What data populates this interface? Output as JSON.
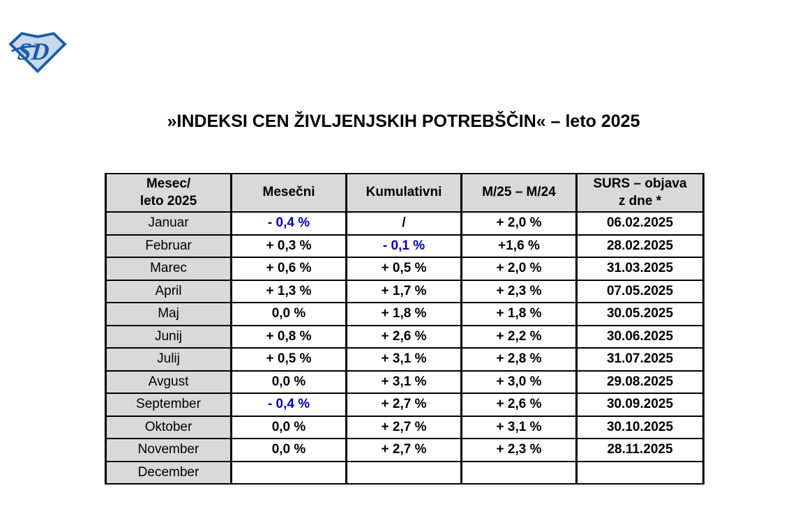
{
  "logo": {
    "letters": "SD",
    "outline_color": "#1A5CA8",
    "fill_color": "#C9D9EC"
  },
  "title": "»INDEKSI CEN ŽIVLJENJSKIH POTREBŠČIN« – leto 2025",
  "colors": {
    "negative_value": "#0000C0",
    "header_bg": "#D9D9D9",
    "border": "#000000"
  },
  "table": {
    "columns": [
      {
        "lines": [
          "Mesec/",
          "leto 2025"
        ]
      },
      {
        "lines": [
          "Mesečni"
        ]
      },
      {
        "lines": [
          "Kumulativni"
        ]
      },
      {
        "lines": [
          "M/25 – M/24"
        ]
      },
      {
        "lines": [
          "SURS – objava",
          "z dne *"
        ]
      }
    ],
    "rows": [
      {
        "month": "Januar",
        "cells": [
          {
            "text": "- 0,4 %",
            "blue": true
          },
          {
            "text": "/"
          },
          {
            "text": "+ 2,0 %"
          },
          {
            "text": "06.02.2025"
          }
        ]
      },
      {
        "month": "Februar",
        "cells": [
          {
            "text": "+ 0,3 %"
          },
          {
            "text": "- 0,1 %",
            "blue": true
          },
          {
            "text": "+1,6 %"
          },
          {
            "text": "28.02.2025"
          }
        ]
      },
      {
        "month": "Marec",
        "cells": [
          {
            "text": "+ 0,6 %"
          },
          {
            "text": "+ 0,5 %"
          },
          {
            "text": "+ 2,0 %"
          },
          {
            "text": "31.03.2025"
          }
        ]
      },
      {
        "month": "April",
        "cells": [
          {
            "text": "+ 1,3 %"
          },
          {
            "text": "+ 1,7 %"
          },
          {
            "text": "+ 2,3 %"
          },
          {
            "text": "07.05.2025"
          }
        ]
      },
      {
        "month": "Maj",
        "cells": [
          {
            "text": "0,0 %"
          },
          {
            "text": "+ 1,8 %"
          },
          {
            "text": "+ 1,8 %"
          },
          {
            "text": "30.05.2025"
          }
        ]
      },
      {
        "month": "Junij",
        "cells": [
          {
            "text": "+ 0,8 %"
          },
          {
            "text": "+ 2,6 %"
          },
          {
            "text": "+ 2,2 %"
          },
          {
            "text": "30.06.2025"
          }
        ]
      },
      {
        "month": "Julij",
        "cells": [
          {
            "text": "+ 0,5 %"
          },
          {
            "text": "+ 3,1 %"
          },
          {
            "text": "+ 2,8 %"
          },
          {
            "text": "31.07.2025"
          }
        ]
      },
      {
        "month": "Avgust",
        "cells": [
          {
            "text": "0,0 %"
          },
          {
            "text": "+ 3,1 %"
          },
          {
            "text": "+ 3,0 %"
          },
          {
            "text": "29.08.2025"
          }
        ]
      },
      {
        "month": "September",
        "cells": [
          {
            "text": "- 0,4 %",
            "blue": true
          },
          {
            "text": "+ 2,7 %"
          },
          {
            "text": "+ 2,6 %"
          },
          {
            "text": "30.09.2025"
          }
        ]
      },
      {
        "month": "Oktober",
        "cells": [
          {
            "text": "0,0 %"
          },
          {
            "text": "+ 2,7 %"
          },
          {
            "text": "+ 3,1 %"
          },
          {
            "text": "30.10.2025"
          }
        ]
      },
      {
        "month": "November",
        "cells": [
          {
            "text": "0,0 %"
          },
          {
            "text": "+ 2,7 %"
          },
          {
            "text": "+ 2,3 %"
          },
          {
            "text": "28.11.2025"
          }
        ]
      },
      {
        "month": "December",
        "cells": [
          {
            "text": ""
          },
          {
            "text": ""
          },
          {
            "text": ""
          },
          {
            "text": ""
          }
        ]
      }
    ]
  }
}
